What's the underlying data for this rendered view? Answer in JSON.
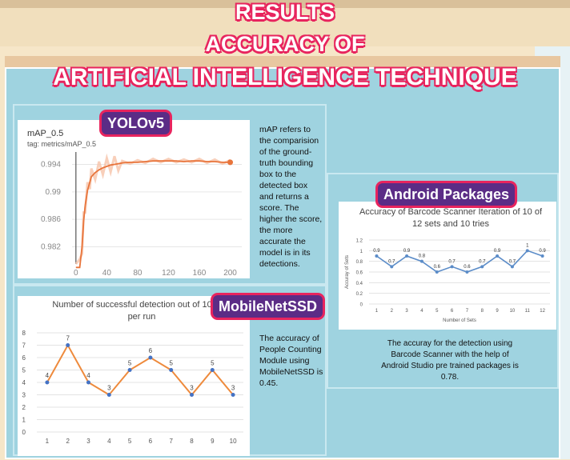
{
  "title": {
    "line1": "RESULTS",
    "line2": "ACCURACY OF",
    "line3": "ARTIFICIAL INTELLIGENCE TECHNIQUE"
  },
  "yolo": {
    "label": "YOLOv5",
    "description": "mAP refers to the comparision of the ground-truth bounding box to the detected box and returns a score. The higher the score, the more accurate the model is in its detections."
  },
  "mobilenet": {
    "label": "MobileNetSSD",
    "description": "The accuracy of People Counting Module using MobileNetSSD is 0.45."
  },
  "android": {
    "label": "Android Packages",
    "description": "The accuray for the detection using Barcode Scanner with the help of Android Studio pre trained packages is 0.78."
  },
  "chart_data": [
    {
      "type": "line",
      "title": "mAP_0.5",
      "subtitle": "tag: metrics/mAP_0.5",
      "x": [
        0,
        5,
        8,
        10,
        12,
        15,
        18,
        20,
        25,
        30,
        35,
        40,
        45,
        50,
        55,
        60,
        70,
        80,
        90,
        100,
        110,
        120,
        130,
        140,
        150,
        160,
        170,
        180,
        190,
        200
      ],
      "y": [
        0.979,
        0.979,
        0.982,
        0.9858,
        0.988,
        0.9902,
        0.9914,
        0.9922,
        0.9928,
        0.9932,
        0.9935,
        0.9937,
        0.9939,
        0.994,
        0.9941,
        0.9942,
        0.9943,
        0.9943,
        0.9944,
        0.9945,
        0.9945,
        0.9945,
        0.9945,
        0.9944,
        0.9945,
        0.9945,
        0.9944,
        0.9944,
        0.9943,
        0.9943
      ],
      "xticks": [
        0,
        40,
        80,
        120,
        160,
        200
      ],
      "yticks": [
        0.982,
        0.986,
        0.99,
        0.994
      ],
      "xlim": [
        -5,
        215
      ],
      "ylim": [
        0.9795,
        0.9958
      ],
      "color": "#e8743b"
    },
    {
      "type": "line",
      "title": "Number of successful detection out of 10 tries per run",
      "categories": [
        "1",
        "2",
        "3",
        "4",
        "5",
        "6",
        "7",
        "8",
        "9",
        "10"
      ],
      "values": [
        4,
        7,
        4,
        3,
        5,
        6,
        5,
        3,
        5,
        3
      ],
      "yticks": [
        0,
        1,
        2,
        3,
        4,
        5,
        6,
        7,
        8
      ],
      "ylim": [
        0,
        8
      ],
      "line_color": "#ee8a3c",
      "marker_color": "#4472c4"
    },
    {
      "type": "line",
      "title": "Accuracy of Barcode Scanner Iteration of 10 of 12 sets and 10 tries",
      "categories": [
        "1",
        "2",
        "3",
        "4",
        "5",
        "6",
        "7",
        "8",
        "9",
        "10",
        "11",
        "12"
      ],
      "values": [
        0.9,
        0.7,
        0.9,
        0.8,
        0.6,
        0.7,
        0.6,
        0.7,
        0.9,
        0.7,
        1,
        0.9
      ],
      "data_labels": [
        "0.9",
        "0.7",
        "0.9",
        "0.8",
        "0.6",
        "0.7",
        "0.6",
        "0.7",
        "0.9",
        "0.7",
        "1",
        "0.9"
      ],
      "yticks": [
        "0",
        "0.2",
        "0.4",
        "0.6",
        "0.8",
        "1",
        "1.2"
      ],
      "ylim": [
        0,
        1.2
      ],
      "xlabel": "Number of Sets",
      "ylabel": "Accuray of Sets",
      "color": "#5b8cc8"
    }
  ]
}
